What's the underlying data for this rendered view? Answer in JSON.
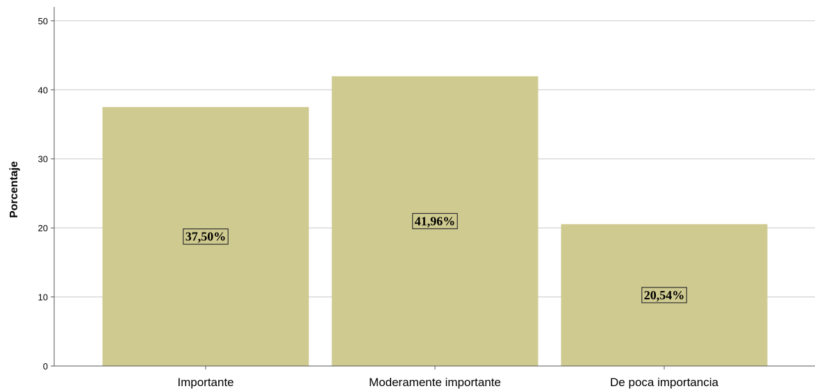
{
  "chart_data": {
    "type": "bar",
    "categories": [
      "Importante",
      "Moderamente importante",
      "De poca importancia"
    ],
    "values": [
      37.5,
      41.96,
      20.54
    ],
    "data_labels": [
      "37,50%",
      "41,96%",
      "20,54%"
    ],
    "ylabel": "Porcentaje",
    "xlabel": "",
    "ylim": [
      0,
      52
    ],
    "yticks": [
      0,
      10,
      20,
      30,
      40,
      50
    ],
    "grid": true,
    "bar_color": "#cfca8f"
  }
}
